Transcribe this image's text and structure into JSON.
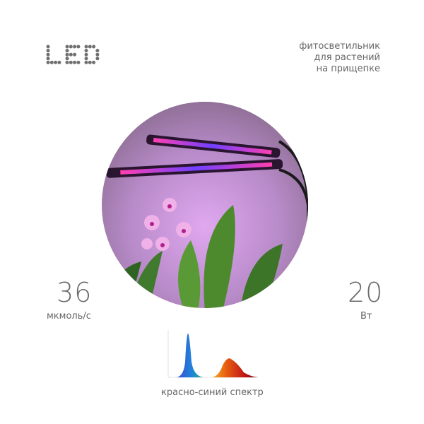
{
  "logo": {
    "text": "LED"
  },
  "product": {
    "lines": [
      "фитосветильник",
      "для растений",
      "на прищепке"
    ]
  },
  "specs": {
    "ppf": {
      "value": "36",
      "unit": "мкмоль/с"
    },
    "power": {
      "value": "20",
      "unit": "Вт"
    }
  },
  "spectrum": {
    "caption": "красно-синий спектр"
  },
  "colors": {
    "text": "#666666",
    "background_circle": "#b58cc4",
    "led_pink": "#ff3fb0",
    "led_blue": "#5b3cff"
  }
}
